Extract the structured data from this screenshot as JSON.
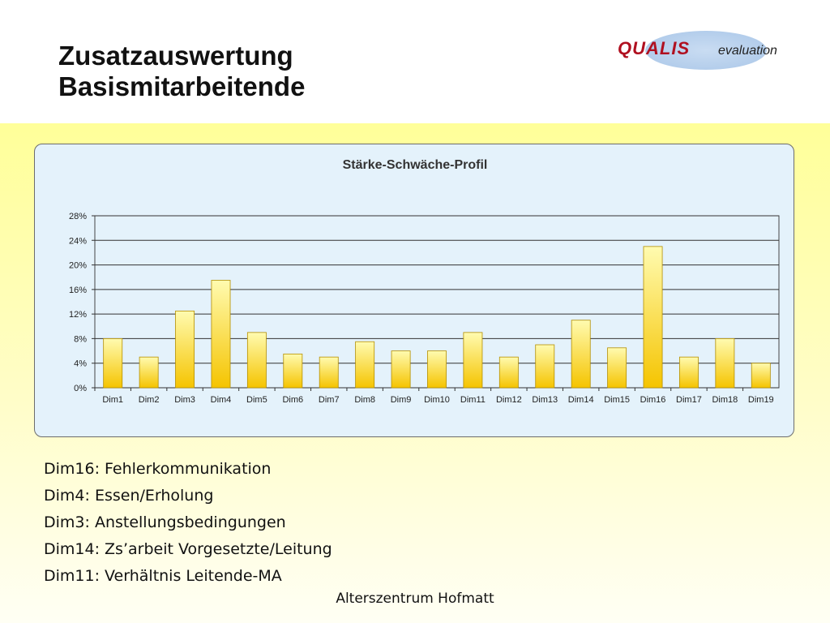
{
  "slide": {
    "title_line1": "Zusatzauswertung",
    "title_line2": "Basismitarbeitende",
    "logo_brand": "QUALIS",
    "logo_sub": "evaluation",
    "footer": "Alterszentrum Hofmatt",
    "notes": [
      "Dim16: Fehlerkommunikation",
      "Dim4: Essen/Erholung",
      "Dim3: Anstellungsbedingungen",
      "Dim14: Zs’arbeit Vorgesetzte/Leitung",
      "Dim11: Verhältnis Leitende-MA"
    ]
  },
  "colors": {
    "logo_red": "#b01020",
    "panel_bg": "#e4f2fb",
    "bar_top": "#fffbb0",
    "bar_bottom": "#f5c400",
    "bar_stroke": "#b58f00"
  },
  "chart_data": {
    "type": "bar",
    "title": "Stärke-Schwäche-Profil",
    "categories": [
      "Dim1",
      "Dim2",
      "Dim3",
      "Dim4",
      "Dim5",
      "Dim6",
      "Dim7",
      "Dim8",
      "Dim9",
      "Dim10",
      "Dim11",
      "Dim12",
      "Dim13",
      "Dim14",
      "Dim15",
      "Dim16",
      "Dim17",
      "Dim18",
      "Dim19"
    ],
    "values": [
      8,
      5,
      12.5,
      17.5,
      9,
      5.5,
      5,
      7.5,
      6,
      6,
      9,
      5,
      7,
      11,
      6.5,
      23,
      5,
      8,
      4
    ],
    "ylim": [
      0,
      28
    ],
    "yticks": [
      0,
      4,
      8,
      12,
      16,
      20,
      24,
      28
    ],
    "ytick_labels": [
      "0%",
      "4%",
      "8%",
      "12%",
      "16%",
      "20%",
      "24%",
      "28%"
    ],
    "xlabel": "",
    "ylabel": "",
    "grid": true,
    "legend": "none"
  }
}
